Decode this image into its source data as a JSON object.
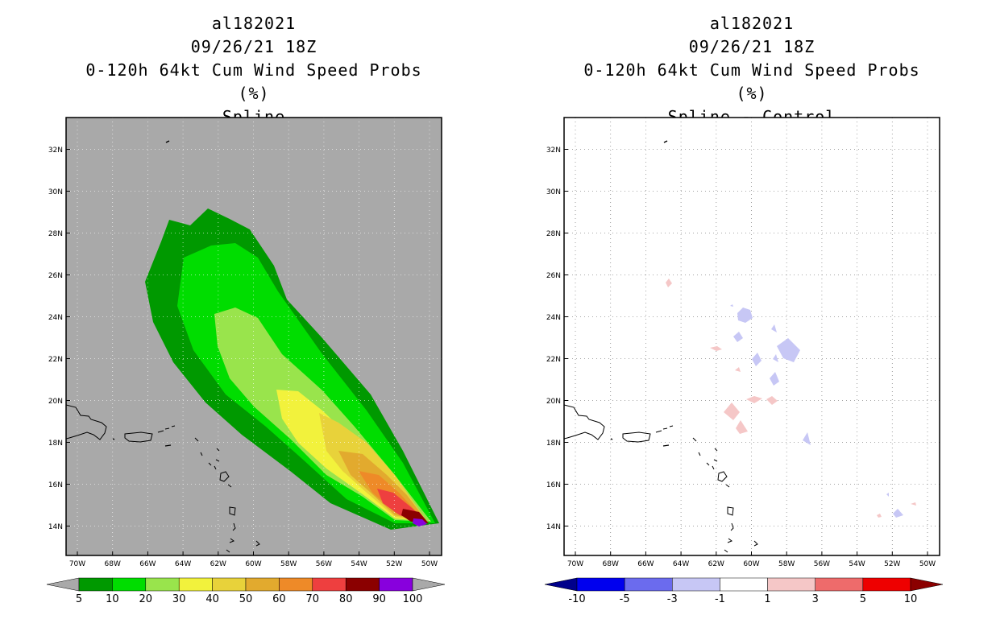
{
  "left_panel": {
    "title_lines": [
      "al182021",
      "09/26/21 18Z",
      "0-120h 64kt Cum Wind Speed Probs (%)",
      "Spline"
    ],
    "lat_labels": [
      "32N",
      "30N",
      "28N",
      "26N",
      "24N",
      "22N",
      "20N",
      "18N",
      "16N",
      "14N"
    ],
    "lon_labels": [
      "70W",
      "68W",
      "66W",
      "64W",
      "62W",
      "60W",
      "58W",
      "56W",
      "54W",
      "52W",
      "50W"
    ],
    "legend": {
      "labels": [
        "5",
        "10",
        "20",
        "30",
        "40",
        "50",
        "60",
        "70",
        "80",
        "90",
        "100"
      ],
      "colors": [
        "#a9a9a9",
        "#009900",
        "#00dd00",
        "#99e44c",
        "#f2f23c",
        "#e8d23a",
        "#e2aa2e",
        "#ee8a28",
        "#ee3f3f",
        "#8b0000",
        "#8800dd",
        "#a9a9a9"
      ]
    }
  },
  "right_panel": {
    "title_lines": [
      "al182021",
      "09/26/21 18Z",
      "0-120h 64kt Cum Wind Speed Probs (%)",
      "Spline - Control"
    ],
    "lat_labels": [
      "32N",
      "30N",
      "28N",
      "26N",
      "24N",
      "22N",
      "20N",
      "18N",
      "16N",
      "14N"
    ],
    "lon_labels": [
      "70W",
      "68W",
      "66W",
      "64W",
      "62W",
      "60W",
      "58W",
      "56W",
      "54W",
      "52W",
      "50W"
    ],
    "legend": {
      "labels": [
        "-10",
        "-5",
        "-3",
        "-1",
        "1",
        "3",
        "5",
        "10"
      ],
      "colors": [
        "#00008b",
        "#0000ee",
        "#6b6bee",
        "#c7c7f5",
        "#ffffff",
        "#f5c7c7",
        "#ee6b6b",
        "#ee0000",
        "#8b0000"
      ]
    }
  }
}
